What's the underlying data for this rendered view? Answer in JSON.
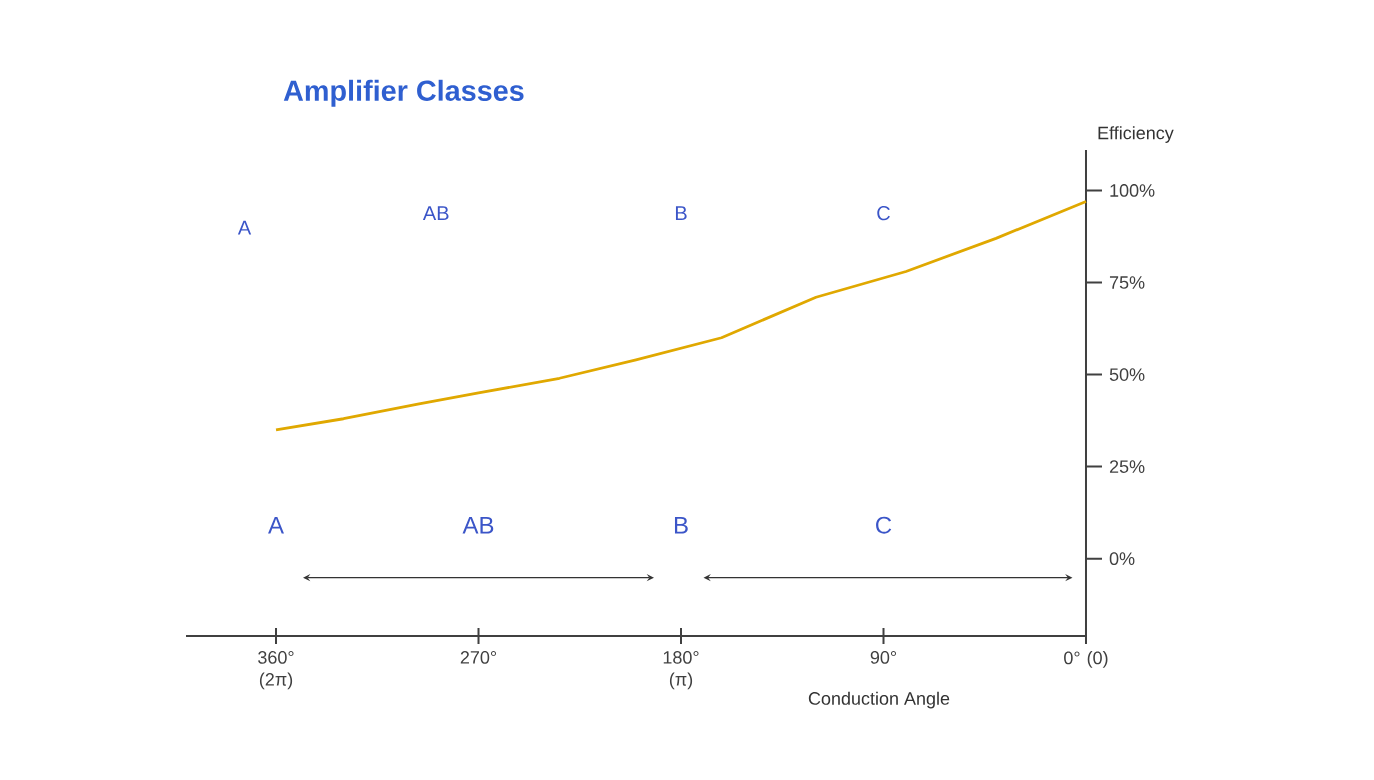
{
  "chart_data": {
    "type": "line",
    "title": "Amplifier Classes",
    "xlabel": "Conduction Angle",
    "ylabel": "Efficiency",
    "x": [
      360,
      330,
      297,
      270,
      234,
      200,
      162,
      120,
      80,
      40,
      0
    ],
    "values": [
      35,
      38,
      42,
      45,
      49,
      54,
      60,
      71,
      78,
      87,
      97
    ],
    "color": "#e0a800",
    "xlim": [
      400,
      0
    ],
    "ylim": [
      -21,
      111
    ],
    "xticks": [
      {
        "value": 360,
        "label": "360° (2π)"
      },
      {
        "value": 270,
        "label": "270°"
      },
      {
        "value": 180,
        "label": "180° (π)"
      },
      {
        "value": 90,
        "label": "90°"
      },
      {
        "value": 0,
        "label": "0° (0)"
      }
    ],
    "yticks": [
      {
        "value": 0,
        "label": "0%"
      },
      {
        "value": 25,
        "label": "25%"
      },
      {
        "value": 50,
        "label": "50%"
      },
      {
        "value": 75,
        "label": "75%"
      },
      {
        "value": 100,
        "label": "100%"
      }
    ],
    "annotations": [
      "A",
      "AB",
      "B",
      "C",
      "A",
      "AB",
      "B",
      "C"
    ]
  }
}
